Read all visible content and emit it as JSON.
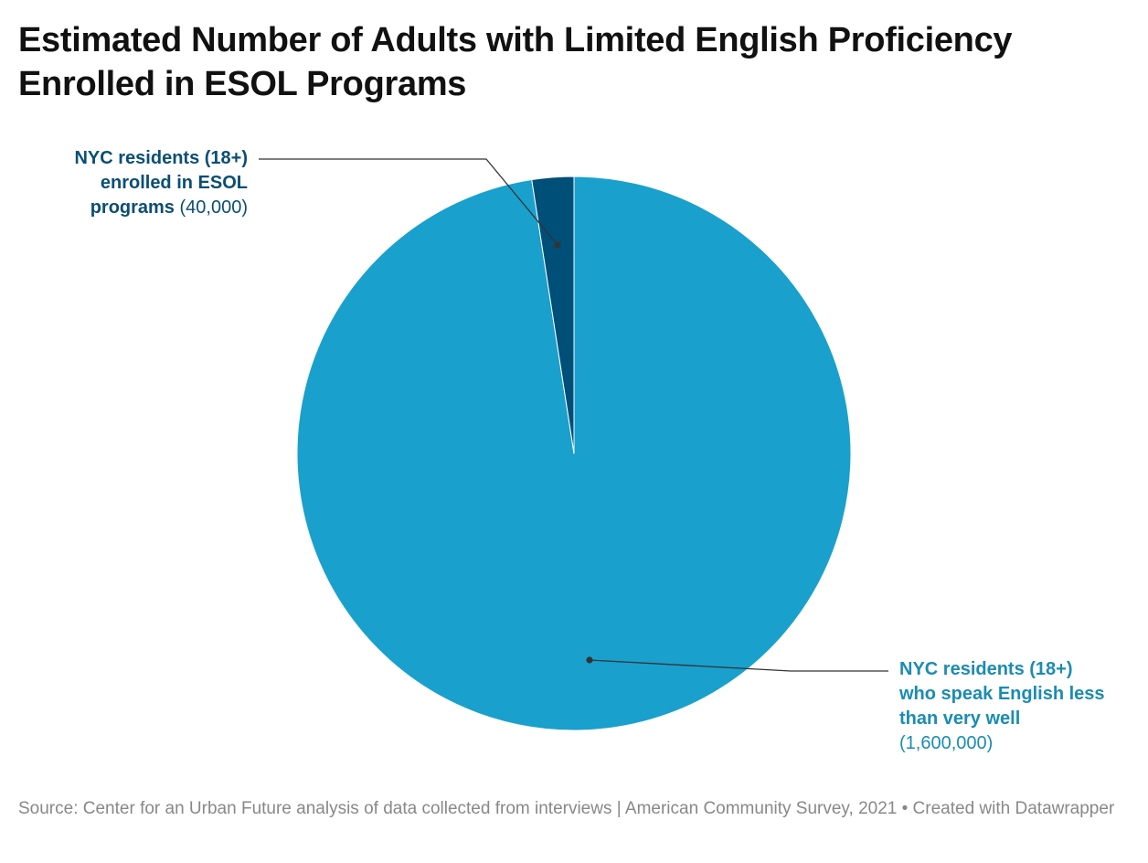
{
  "title": {
    "line1": "Estimated Number of Adults with Limited English Proficiency",
    "line2": "Enrolled in ESOL Programs"
  },
  "chart_data": {
    "type": "pie",
    "slices": [
      {
        "label_lines": [
          "NYC residents (18+)",
          "who speak English less",
          "than very well"
        ],
        "value": 1600000,
        "value_label": "(1,600,000)",
        "color": "#1aa0cc"
      },
      {
        "label_lines": [
          "NYC residents (18+)",
          "enrolled in ESOL",
          "programs"
        ],
        "value": 40000,
        "value_label": "(40,000)",
        "color": "#004f79"
      }
    ]
  },
  "colors": {
    "title": "#111111",
    "leader_line": "#333333",
    "lep_label": "#1a8cb3",
    "esol_label": "#0a4e74",
    "source": "#888888",
    "slice_separator": "#ffffff"
  },
  "footer": {
    "source": "Source: Center for an Urban Future analysis of data collected from interviews | American Community Survey, 2021 • Created with Datawrapper"
  }
}
